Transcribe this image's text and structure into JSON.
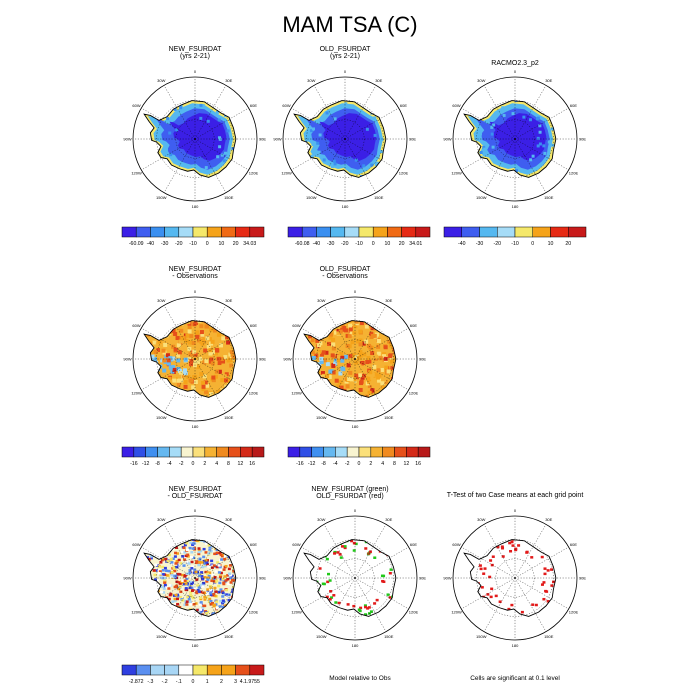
{
  "title": "MAM TSA (C)",
  "panels": [
    {
      "id": "r1c1",
      "title1": "NEW_FSURDAT",
      "title2": "(yrs 2-21)",
      "style": "cold"
    },
    {
      "id": "r1c2",
      "title1": "OLD_FSURDAT",
      "title2": "(yrs 2-21)",
      "style": "cold"
    },
    {
      "id": "r1c3",
      "title1": "RACMO2.3_p2",
      "title2": "",
      "style": "cold"
    },
    {
      "id": "r2c1",
      "title1": "NEW_FSURDAT",
      "title2": "- Observations",
      "style": "warm"
    },
    {
      "id": "r2c2",
      "title1": "OLD_FSURDAT",
      "title2": "- Observations",
      "style": "warm"
    },
    {
      "id": "r3c1",
      "title1": "NEW_FSURDAT",
      "title2": "- OLD_FSURDAT",
      "style": "noise"
    },
    {
      "id": "r3c2",
      "title1": "NEW_FSURDAT (green)",
      "title2": "OLD_FSURDAT (red)",
      "style": "sparse-rg"
    },
    {
      "id": "r3c3",
      "title1": "T-Test of two Case means at each grid point",
      "title2": "",
      "style": "sparse-r"
    }
  ],
  "lon_labels": [
    "0",
    "30E",
    "60E",
    "90E",
    "120E",
    "150E",
    "180",
    "150W",
    "120W",
    "90W",
    "60W",
    "30W"
  ],
  "colorbars": [
    {
      "id": "cb1",
      "labels": [
        "-60.09",
        "-40",
        "-30",
        "-20",
        "-10",
        "0",
        "10",
        "20",
        "34.03"
      ]
    },
    {
      "id": "cb2",
      "labels": [
        "-60.08",
        "-40",
        "-30",
        "-20",
        "-10",
        "0",
        "10",
        "20",
        "34.01"
      ]
    },
    {
      "id": "cb3",
      "labels": [
        "-40",
        "-30",
        "-20",
        "-10",
        "0",
        "10",
        "20"
      ]
    },
    {
      "id": "cb4",
      "labels": [
        "-16",
        "-12",
        "-8",
        "-4",
        "-2",
        "0",
        "2",
        "4",
        "8",
        "12",
        "16"
      ]
    },
    {
      "id": "cb5",
      "labels": [
        "-16",
        "-12",
        "-8",
        "-4",
        "-2",
        "0",
        "2",
        "4",
        "8",
        "12",
        "16"
      ]
    },
    {
      "id": "cb6",
      "labels": [
        "-2.872",
        "-.3",
        "-.2",
        "-.1",
        "0",
        "1",
        "2",
        "3",
        "4.1.9755"
      ]
    }
  ],
  "colors": {
    "temp": [
      "#3b1fe6",
      "#3f5ef0",
      "#3a8ff0",
      "#55b8f0",
      "#a6dcf7",
      "#f5e86a",
      "#f5a31a",
      "#f06a14",
      "#e62a14",
      "#c81a1a"
    ],
    "diff": [
      "#3b1fe6",
      "#2f4fe6",
      "#3f8ff0",
      "#65b8f0",
      "#a6dcf7",
      "#f8f4d0",
      "#fbe07a",
      "#f5b233",
      "#f08a1f",
      "#e6501a",
      "#d42a18",
      "#b81a1a"
    ],
    "noise": [
      "#2f3fe0",
      "#5a8ff0",
      "#a8d6f5",
      "#ffffff",
      "#f5e86a",
      "#f5a31a",
      "#e6501a",
      "#c81a1a"
    ]
  },
  "notes": {
    "r3c2": "Model relative to Obs",
    "r3c3": "Cells are significant at 0.1 level"
  }
}
